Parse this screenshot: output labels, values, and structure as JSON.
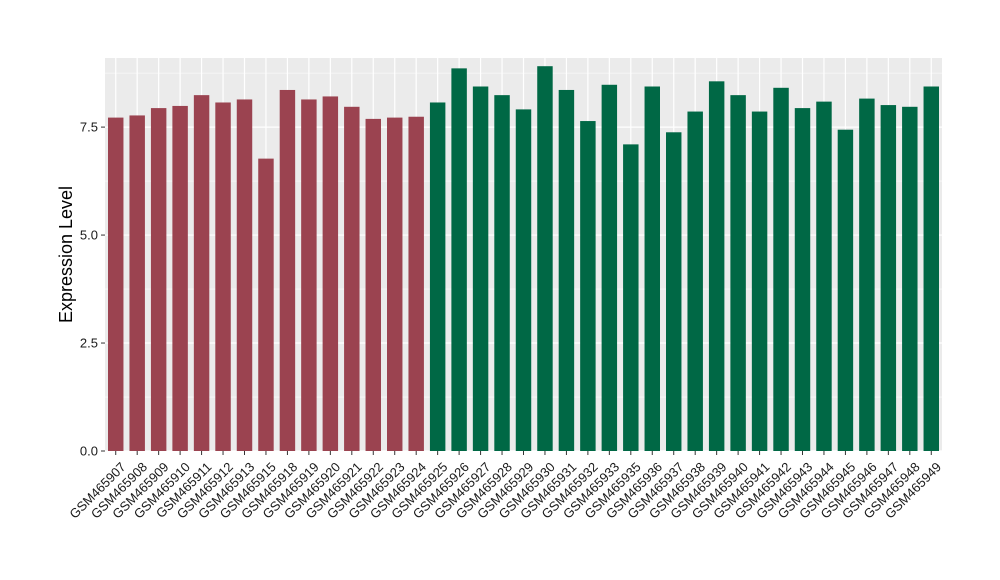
{
  "chart_data": {
    "type": "bar",
    "ylabel": "Expression Level",
    "ylim": [
      0,
      9.1
    ],
    "yticks": [
      0.0,
      2.5,
      5.0,
      7.5
    ],
    "ytick_labels": [
      "0.0",
      "2.5",
      "5.0",
      "7.5"
    ],
    "grid": true,
    "categories": [
      "GSM465907",
      "GSM465908",
      "GSM465909",
      "GSM465910",
      "GSM465911",
      "GSM465912",
      "GSM465913",
      "GSM465915",
      "GSM465918",
      "GSM465919",
      "GSM465920",
      "GSM465921",
      "GSM465922",
      "GSM465923",
      "GSM465924",
      "GSM465925",
      "GSM465926",
      "GSM465927",
      "GSM465928",
      "GSM465929",
      "GSM465930",
      "GSM465931",
      "GSM465932",
      "GSM465933",
      "GSM465935",
      "GSM465936",
      "GSM465937",
      "GSM465938",
      "GSM465939",
      "GSM465940",
      "GSM465941",
      "GSM465942",
      "GSM465943",
      "GSM465944",
      "GSM465945",
      "GSM465946",
      "GSM465947",
      "GSM465948",
      "GSM465949"
    ],
    "values": [
      7.72,
      7.77,
      7.94,
      7.99,
      8.24,
      8.07,
      8.14,
      6.77,
      8.36,
      8.14,
      8.21,
      7.97,
      7.69,
      7.72,
      7.74,
      8.07,
      8.86,
      8.44,
      8.24,
      7.91,
      8.91,
      8.36,
      7.64,
      8.48,
      7.1,
      8.44,
      7.38,
      7.86,
      8.56,
      8.24,
      7.86,
      8.41,
      7.94,
      8.09,
      7.44,
      8.16,
      8.01,
      7.97,
      8.44
    ],
    "groups": [
      "g1",
      "g1",
      "g1",
      "g1",
      "g1",
      "g1",
      "g1",
      "g1",
      "g1",
      "g1",
      "g1",
      "g1",
      "g1",
      "g1",
      "g1",
      "g2",
      "g2",
      "g2",
      "g2",
      "g2",
      "g2",
      "g2",
      "g2",
      "g2",
      "g2",
      "g2",
      "g2",
      "g2",
      "g2",
      "g2",
      "g2",
      "g2",
      "g2",
      "g2",
      "g2",
      "g2",
      "g2",
      "g2",
      "g2"
    ],
    "colors": {
      "g1": "#9b4350",
      "g2": "#006845",
      "panel": "#ebebeb",
      "grid": "#ffffff"
    }
  }
}
